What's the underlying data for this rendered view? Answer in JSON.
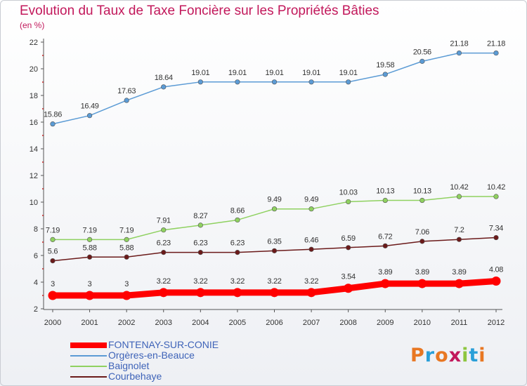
{
  "title": "Evolution du Taux de Taxe Foncière sur les Propriétés Bâties",
  "subtitle": "(en %)",
  "logo": "Proxiti",
  "chart_data": {
    "type": "line",
    "x": [
      "2000",
      "2001",
      "2002",
      "2003",
      "2004",
      "2005",
      "2006",
      "2007",
      "2008",
      "2009",
      "2010",
      "2011",
      "2012"
    ],
    "ylim": [
      2,
      22
    ],
    "yticks": [
      2,
      4,
      6,
      8,
      10,
      12,
      14,
      16,
      18,
      20,
      22
    ],
    "grid": false,
    "legend_position": "bottom-left",
    "series": [
      {
        "name": "FONTENAY-SUR-CONIE",
        "color": "#ff0000",
        "values": [
          3,
          3,
          3,
          3.22,
          3.22,
          3.22,
          3.22,
          3.22,
          3.54,
          3.89,
          3.89,
          3.89,
          4.08
        ],
        "labels": [
          "3",
          "3",
          "3",
          "3.22",
          "3.22",
          "3.22",
          "3.22",
          "3.22",
          "3.54",
          "3.89",
          "3.89",
          "3.89",
          "4.08"
        ]
      },
      {
        "name": "Orgères-en-Beauce",
        "color": "#5b9bd5",
        "values": [
          15.86,
          16.49,
          17.63,
          18.64,
          19.01,
          19.01,
          19.01,
          19.01,
          19.01,
          19.58,
          20.56,
          21.18,
          21.18
        ],
        "labels": [
          "15.86",
          "16.49",
          "17.63",
          "18.64",
          "19.01",
          "19.01",
          "19.01",
          "19.01",
          "19.01",
          "19.58",
          "20.56",
          "21.18",
          "21.18"
        ]
      },
      {
        "name": "Baignolet",
        "color": "#8fd160",
        "values": [
          7.19,
          7.19,
          7.19,
          7.91,
          8.27,
          8.66,
          9.49,
          9.49,
          10.03,
          10.13,
          10.13,
          10.42,
          10.42
        ],
        "labels": [
          "7.19",
          "7.19",
          "7.19",
          "7.91",
          "8.27",
          "8.66",
          "9.49",
          "9.49",
          "10.03",
          "10.13",
          "10.13",
          "10.42",
          "10.42"
        ]
      },
      {
        "name": "Courbehaye",
        "color": "#6b1a1a",
        "values": [
          5.6,
          5.88,
          5.88,
          6.23,
          6.23,
          6.23,
          6.35,
          6.46,
          6.59,
          6.72,
          7.06,
          7.2,
          7.34
        ],
        "labels": [
          "5.6",
          "5.88",
          "5.88",
          "6.23",
          "6.23",
          "6.23",
          "6.35",
          "6.46",
          "6.59",
          "6.72",
          "7.06",
          "7.2",
          "7.34"
        ]
      }
    ]
  }
}
